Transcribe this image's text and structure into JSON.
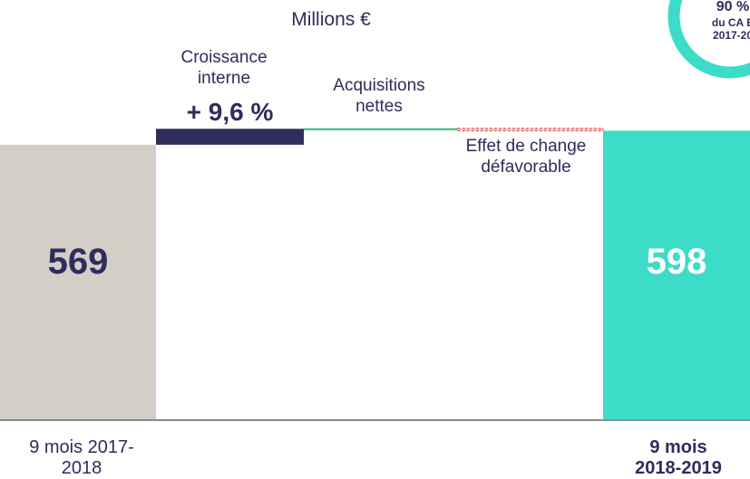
{
  "chart_data": {
    "type": "waterfall",
    "title": "Millions €",
    "categories": [
      "9 mois 2017-2018",
      "Croissance interne",
      "Acquisitions nettes",
      "Effet de change défavorable",
      "9 mois 2018-2019"
    ],
    "values": [
      569,
      33,
      1,
      -5,
      598
    ],
    "colors": [
      "#d3cfc7",
      "#2e2d5e",
      "#2fb67d",
      "#d9383a",
      "#3ddcc8"
    ],
    "annotation": "+ 9,6 %",
    "ylim": [
      0,
      869
    ]
  },
  "badge": {
    "value": "90 %",
    "line1": "du CA E",
    "line2": "2017-20"
  }
}
